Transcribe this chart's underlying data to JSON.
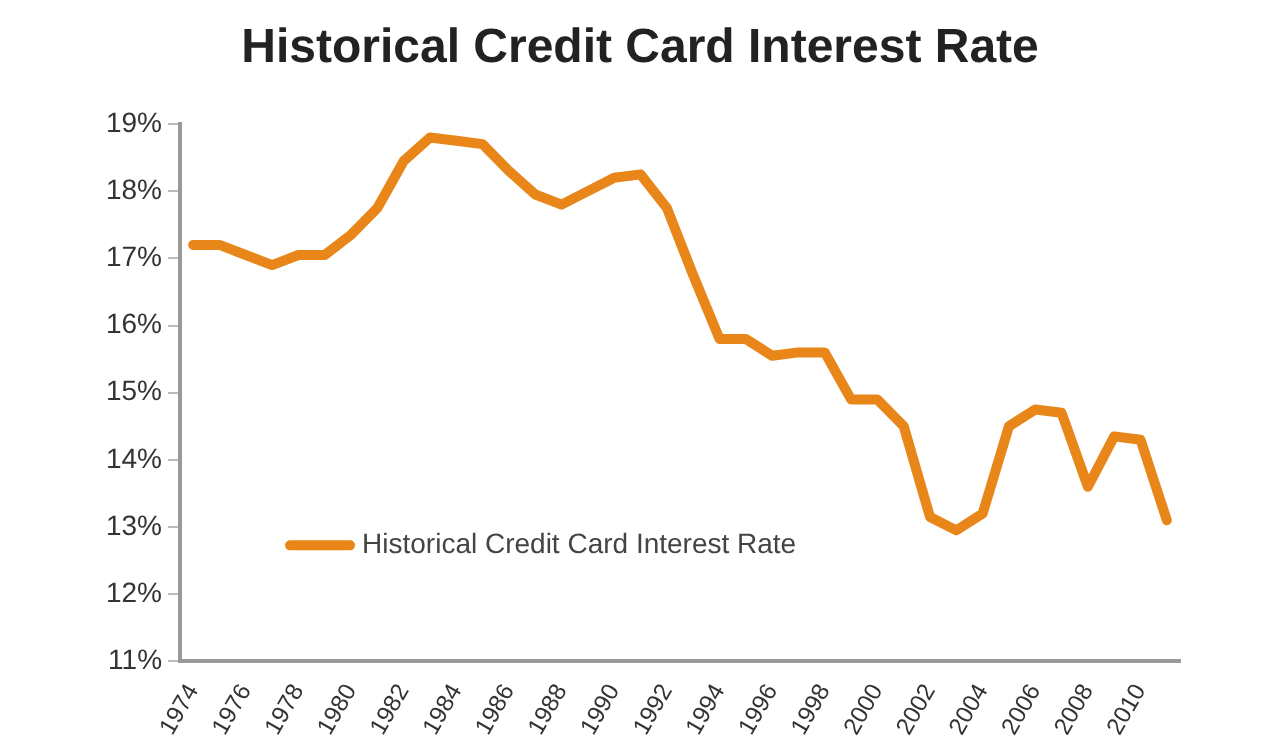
{
  "chart_data": {
    "type": "line",
    "title": "Historical Credit Card Interest Rate",
    "categories": [
      "1974",
      null,
      "1976",
      null,
      "1978",
      null,
      "1980",
      null,
      "1982",
      null,
      "1984",
      null,
      "1986",
      null,
      "1988",
      null,
      "1990",
      null,
      "1992",
      null,
      "1994",
      null,
      "1996",
      null,
      "1998",
      null,
      "2000",
      null,
      "2002",
      null,
      "2004",
      null,
      "2006",
      null,
      "2008",
      null,
      "2010",
      null
    ],
    "series": [
      {
        "name": "Historical Credit Card Interest Rate",
        "color": "#e8861a",
        "values": [
          17.2,
          17.2,
          17.05,
          16.9,
          17.05,
          17.05,
          17.35,
          17.75,
          18.45,
          18.8,
          18.75,
          18.7,
          18.3,
          17.95,
          17.8,
          18.0,
          18.2,
          18.25,
          17.75,
          16.75,
          15.8,
          15.8,
          15.55,
          15.6,
          15.6,
          14.9,
          14.9,
          14.5,
          13.15,
          12.95,
          13.2,
          14.5,
          14.75,
          14.7,
          13.6,
          14.35,
          14.3,
          13.1
        ]
      }
    ],
    "ylim": [
      11,
      19
    ],
    "yticks": [
      {
        "value": 11,
        "label": "11%"
      },
      {
        "value": 12,
        "label": "12%"
      },
      {
        "value": 13,
        "label": "13%"
      },
      {
        "value": 14,
        "label": "14%"
      },
      {
        "value": 15,
        "label": "15%"
      },
      {
        "value": 16,
        "label": "16%"
      },
      {
        "value": 17,
        "label": "17%"
      },
      {
        "value": 18,
        "label": "18%"
      },
      {
        "value": 19,
        "label": "19%"
      }
    ],
    "grid": false,
    "legend": "bottom left",
    "marker": "none",
    "line_style": "solid"
  }
}
